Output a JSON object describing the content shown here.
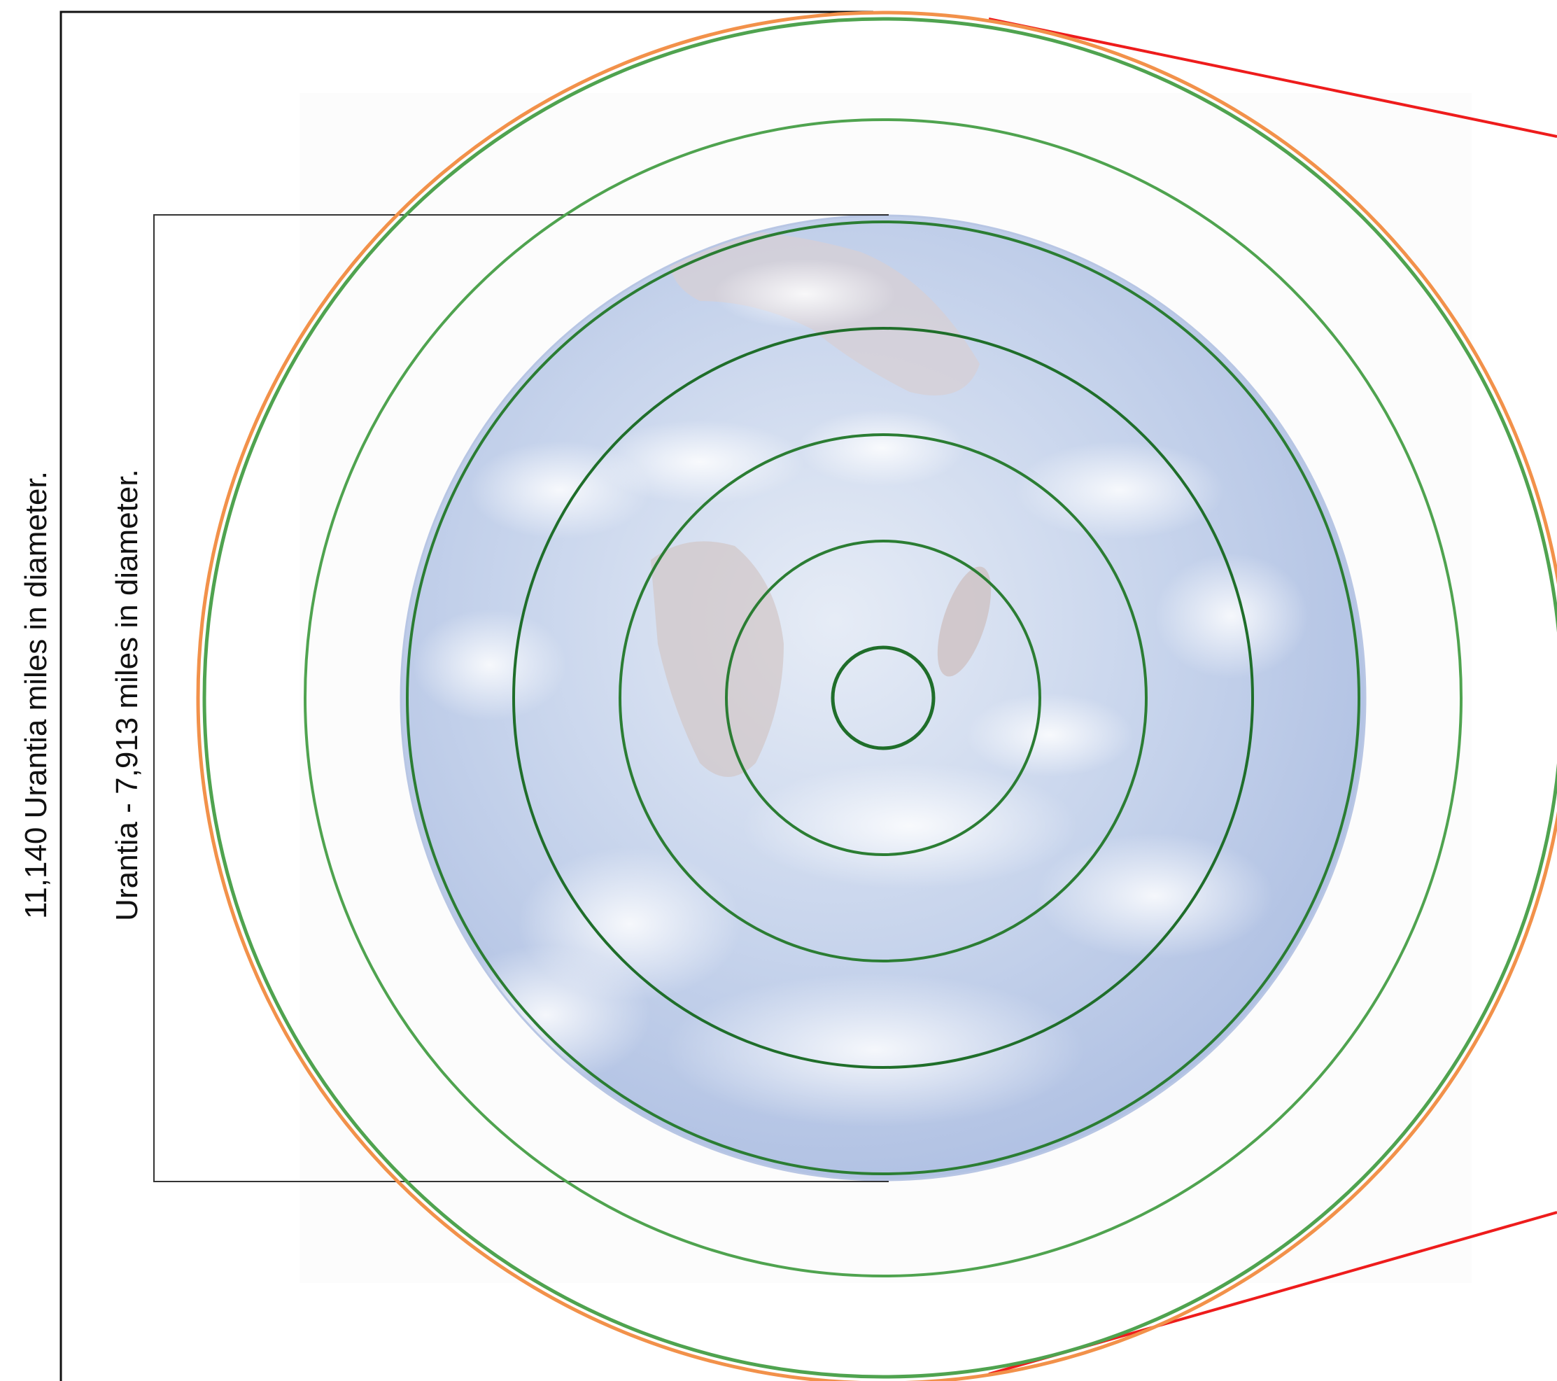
{
  "labels": {
    "outer_diameter": "11,140 Urantia miles in diameter.",
    "planet_diameter": "Urantia - 7,913 miles in diameter."
  },
  "colors": {
    "background_panel": "#fcfcfc",
    "earth_tint": "#b9c8e6",
    "ring_green": "#4fa34f",
    "ring_green_dark": "#1f6e2a",
    "outer_ring_orange": "#f2914a",
    "pointer_red": "#ee1c1c",
    "bracket_line": "#111111"
  },
  "icons": {
    "planet": "earth-globe-image"
  }
}
